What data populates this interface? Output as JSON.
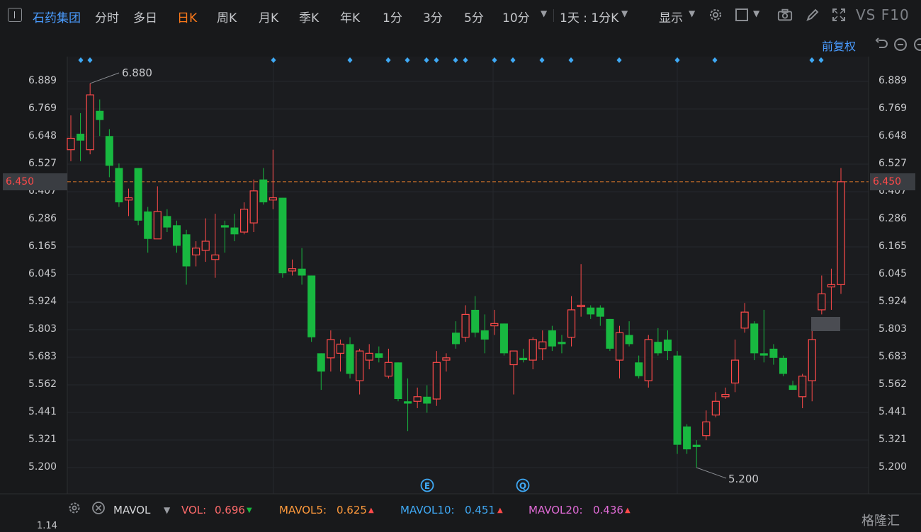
{
  "header": {
    "stock_name": "石药集团",
    "timeframes": [
      "分时",
      "多日",
      "日K",
      "周K",
      "月K",
      "季K",
      "年K",
      "1分",
      "3分",
      "5分",
      "10分"
    ],
    "active_timeframe": "日K",
    "interval_label": "1天 : 1分K",
    "display_label": "显示",
    "vs_f10": "VS F10"
  },
  "chart": {
    "adjust_label": "前复权",
    "price_axis_ticks": [
      "6.889",
      "6.769",
      "6.648",
      "6.527",
      "6.407",
      "6.286",
      "6.165",
      "6.045",
      "5.924",
      "5.803",
      "5.683",
      "5.562",
      "5.441",
      "5.321",
      "5.200"
    ],
    "current_price": "6.450",
    "high_marker": "6.880",
    "low_marker": "5.200",
    "event_markers": [
      "E",
      "Q"
    ]
  },
  "chart_data": {
    "type": "candlestick",
    "ylim": [
      5.1,
      7.0
    ],
    "bull_color": "#ff4a4a",
    "bear_color": "#18b840",
    "candles": [
      {
        "o": 6.59,
        "h": 6.74,
        "l": 6.54,
        "c": 6.64
      },
      {
        "o": 6.66,
        "h": 6.75,
        "l": 6.54,
        "c": 6.63
      },
      {
        "o": 6.59,
        "h": 6.88,
        "l": 6.57,
        "c": 6.83
      },
      {
        "o": 6.76,
        "h": 6.81,
        "l": 6.65,
        "c": 6.72
      },
      {
        "o": 6.65,
        "h": 6.68,
        "l": 6.47,
        "c": 6.52
      },
      {
        "o": 6.51,
        "h": 6.53,
        "l": 6.34,
        "c": 6.36
      },
      {
        "o": 6.37,
        "h": 6.42,
        "l": 6.3,
        "c": 6.38
      },
      {
        "o": 6.51,
        "h": 6.51,
        "l": 6.26,
        "c": 6.28
      },
      {
        "o": 6.32,
        "h": 6.34,
        "l": 6.14,
        "c": 6.2
      },
      {
        "o": 6.2,
        "h": 6.43,
        "l": 6.2,
        "c": 6.32
      },
      {
        "o": 6.3,
        "h": 6.33,
        "l": 6.23,
        "c": 6.25
      },
      {
        "o": 6.26,
        "h": 6.28,
        "l": 6.14,
        "c": 6.17
      },
      {
        "o": 6.22,
        "h": 6.24,
        "l": 6.0,
        "c": 6.08
      },
      {
        "o": 6.13,
        "h": 6.19,
        "l": 6.08,
        "c": 6.16
      },
      {
        "o": 6.15,
        "h": 6.29,
        "l": 6.1,
        "c": 6.19
      },
      {
        "o": 6.11,
        "h": 6.31,
        "l": 6.03,
        "c": 6.13
      },
      {
        "o": 6.26,
        "h": 6.28,
        "l": 6.14,
        "c": 6.25
      },
      {
        "o": 6.25,
        "h": 6.31,
        "l": 6.19,
        "c": 6.22
      },
      {
        "o": 6.23,
        "h": 6.36,
        "l": 6.22,
        "c": 6.33
      },
      {
        "o": 6.27,
        "h": 6.46,
        "l": 6.23,
        "c": 6.41
      },
      {
        "o": 6.46,
        "h": 6.51,
        "l": 6.35,
        "c": 6.36
      },
      {
        "o": 6.37,
        "h": 6.59,
        "l": 6.33,
        "c": 6.38
      },
      {
        "o": 6.38,
        "h": 6.38,
        "l": 6.03,
        "c": 6.05
      },
      {
        "o": 6.06,
        "h": 6.11,
        "l": 6.04,
        "c": 6.07
      },
      {
        "o": 6.07,
        "h": 6.16,
        "l": 6.0,
        "c": 6.04
      },
      {
        "o": 6.04,
        "h": 6.04,
        "l": 5.75,
        "c": 5.77
      },
      {
        "o": 5.7,
        "h": 5.7,
        "l": 5.54,
        "c": 5.62
      },
      {
        "o": 5.68,
        "h": 5.8,
        "l": 5.62,
        "c": 5.76
      },
      {
        "o": 5.7,
        "h": 5.76,
        "l": 5.62,
        "c": 5.74
      },
      {
        "o": 5.74,
        "h": 5.77,
        "l": 5.59,
        "c": 5.61
      },
      {
        "o": 5.58,
        "h": 5.72,
        "l": 5.52,
        "c": 5.71
      },
      {
        "o": 5.67,
        "h": 5.74,
        "l": 5.63,
        "c": 5.7
      },
      {
        "o": 5.7,
        "h": 5.73,
        "l": 5.66,
        "c": 5.68
      },
      {
        "o": 5.6,
        "h": 5.72,
        "l": 5.59,
        "c": 5.66
      },
      {
        "o": 5.66,
        "h": 5.66,
        "l": 5.49,
        "c": 5.5
      },
      {
        "o": 5.49,
        "h": 5.59,
        "l": 5.36,
        "c": 5.48
      },
      {
        "o": 5.49,
        "h": 5.55,
        "l": 5.46,
        "c": 5.51
      },
      {
        "o": 5.51,
        "h": 5.56,
        "l": 5.44,
        "c": 5.48
      },
      {
        "o": 5.5,
        "h": 5.71,
        "l": 5.47,
        "c": 5.66
      },
      {
        "o": 5.67,
        "h": 5.7,
        "l": 5.62,
        "c": 5.68
      },
      {
        "o": 5.79,
        "h": 5.84,
        "l": 5.72,
        "c": 5.74
      },
      {
        "o": 5.77,
        "h": 5.91,
        "l": 5.75,
        "c": 5.87
      },
      {
        "o": 5.89,
        "h": 5.95,
        "l": 5.77,
        "c": 5.79
      },
      {
        "o": 5.8,
        "h": 5.87,
        "l": 5.7,
        "c": 5.76
      },
      {
        "o": 5.82,
        "h": 5.89,
        "l": 5.78,
        "c": 5.83
      },
      {
        "o": 5.83,
        "h": 5.83,
        "l": 5.69,
        "c": 5.7
      },
      {
        "o": 5.65,
        "h": 5.7,
        "l": 5.52,
        "c": 5.71
      },
      {
        "o": 5.68,
        "h": 5.72,
        "l": 5.66,
        "c": 5.67
      },
      {
        "o": 5.67,
        "h": 5.77,
        "l": 5.63,
        "c": 5.76
      },
      {
        "o": 5.72,
        "h": 5.8,
        "l": 5.67,
        "c": 5.75
      },
      {
        "o": 5.8,
        "h": 5.82,
        "l": 5.71,
        "c": 5.73
      },
      {
        "o": 5.75,
        "h": 5.78,
        "l": 5.7,
        "c": 5.74
      },
      {
        "o": 5.77,
        "h": 5.95,
        "l": 5.73,
        "c": 5.89
      },
      {
        "o": 5.91,
        "h": 6.09,
        "l": 5.86,
        "c": 5.91
      },
      {
        "o": 5.9,
        "h": 5.91,
        "l": 5.85,
        "c": 5.87
      },
      {
        "o": 5.9,
        "h": 5.91,
        "l": 5.82,
        "c": 5.86
      },
      {
        "o": 5.85,
        "h": 5.85,
        "l": 5.71,
        "c": 5.72
      },
      {
        "o": 5.67,
        "h": 5.82,
        "l": 5.59,
        "c": 5.79
      },
      {
        "o": 5.78,
        "h": 5.84,
        "l": 5.73,
        "c": 5.74
      },
      {
        "o": 5.66,
        "h": 5.69,
        "l": 5.59,
        "c": 5.6
      },
      {
        "o": 5.58,
        "h": 5.78,
        "l": 5.55,
        "c": 5.76
      },
      {
        "o": 5.75,
        "h": 5.81,
        "l": 5.69,
        "c": 5.7
      },
      {
        "o": 5.76,
        "h": 5.8,
        "l": 5.67,
        "c": 5.71
      },
      {
        "o": 5.69,
        "h": 5.71,
        "l": 5.26,
        "c": 5.3
      },
      {
        "o": 5.38,
        "h": 5.39,
        "l": 5.26,
        "c": 5.28
      },
      {
        "o": 5.3,
        "h": 5.32,
        "l": 5.2,
        "c": 5.29
      },
      {
        "o": 5.34,
        "h": 5.45,
        "l": 5.32,
        "c": 5.4
      },
      {
        "o": 5.43,
        "h": 5.53,
        "l": 5.42,
        "c": 5.49
      },
      {
        "o": 5.51,
        "h": 5.55,
        "l": 5.5,
        "c": 5.52
      },
      {
        "o": 5.57,
        "h": 5.76,
        "l": 5.53,
        "c": 5.67
      },
      {
        "o": 5.81,
        "h": 5.92,
        "l": 5.79,
        "c": 5.88
      },
      {
        "o": 5.83,
        "h": 5.84,
        "l": 5.67,
        "c": 5.7
      },
      {
        "o": 5.7,
        "h": 5.89,
        "l": 5.66,
        "c": 5.69
      },
      {
        "o": 5.72,
        "h": 5.74,
        "l": 5.65,
        "c": 5.68
      },
      {
        "o": 5.68,
        "h": 5.69,
        "l": 5.6,
        "c": 5.61
      },
      {
        "o": 5.56,
        "h": 5.58,
        "l": 5.54,
        "c": 5.54
      },
      {
        "o": 5.51,
        "h": 5.61,
        "l": 5.46,
        "c": 5.6
      },
      {
        "o": 5.58,
        "h": 5.81,
        "l": 5.49,
        "c": 5.76
      },
      {
        "o": 5.89,
        "h": 6.04,
        "l": 5.87,
        "c": 5.96
      },
      {
        "o": 5.99,
        "h": 6.07,
        "l": 5.89,
        "c": 6.0
      },
      {
        "o": 6.0,
        "h": 6.51,
        "l": 5.96,
        "c": 6.45
      }
    ]
  },
  "volume": {
    "label": "MAVOL",
    "items": [
      {
        "name": "VOL:",
        "value": "0.696",
        "arrow": "▼",
        "color": "#ff6b6b",
        "arrow_color": "#18b840"
      },
      {
        "name": "MAVOL5:",
        "value": "0.625",
        "arrow": "▲",
        "color": "#ff9a3c",
        "arrow_color": "#ff4a4a"
      },
      {
        "name": "MAVOL10:",
        "value": "0.451",
        "arrow": "▲",
        "color": "#3fa9f5",
        "arrow_color": "#ff4a4a"
      },
      {
        "name": "MAVOL20:",
        "value": "0.436",
        "arrow": "▲",
        "color": "#e06bd6",
        "arrow_color": "#ff4a4a"
      }
    ],
    "axis_top": "1.14"
  },
  "watermark": "格隆汇"
}
